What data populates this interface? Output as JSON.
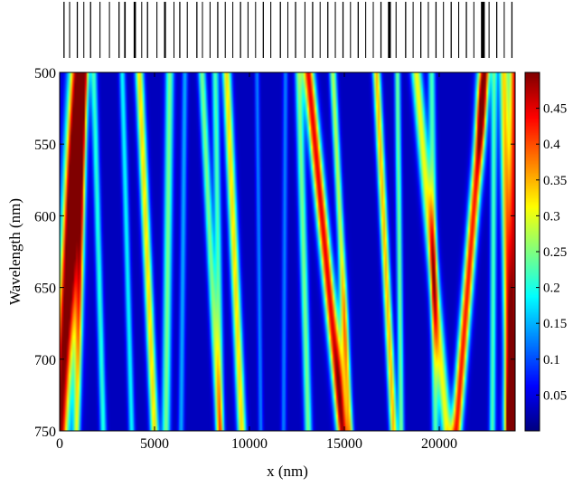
{
  "chart_data": {
    "type": "heatmap",
    "title": "",
    "xlabel": "x (nm)",
    "ylabel": "Wavelength (nm)",
    "xlim": [
      0,
      24000
    ],
    "ylim": [
      500,
      750
    ],
    "y_axis_direction": "top-to-bottom increasing",
    "x_ticks": [
      "0",
      "5000",
      "10000",
      "15000",
      "20000"
    ],
    "x_tick_values": [
      0,
      5000,
      10000,
      15000,
      20000
    ],
    "y_ticks": [
      "500",
      "550",
      "600",
      "650",
      "700",
      "750"
    ],
    "y_tick_values": [
      500,
      550,
      600,
      650,
      700,
      750
    ],
    "colorbar": {
      "range": [
        0,
        0.5
      ],
      "ticks": [
        "0.05",
        "0.1",
        "0.15",
        "0.2",
        "0.25",
        "0.3",
        "0.35",
        "0.4",
        "0.45"
      ],
      "tick_values": [
        0.05,
        0.1,
        0.15,
        0.2,
        0.25,
        0.3,
        0.35,
        0.4,
        0.45
      ],
      "colormap": "jet"
    },
    "background_value": 0.03,
    "bands_description_units": "x in nm, wavelength in nm, peak value in colorbar units",
    "bands": [
      {
        "x500": 1000,
        "x750": 0,
        "width": 450,
        "peak": 0.48
      },
      {
        "x500": 1300,
        "x750": 900,
        "width": 180,
        "peak": 0.25
      },
      {
        "x500": 1800,
        "x750": 2300,
        "width": 170,
        "peak": 0.18
      },
      {
        "x500": 3300,
        "x750": 3800,
        "width": 160,
        "peak": 0.16
      },
      {
        "x500": 4200,
        "x750": 5000,
        "width": 220,
        "peak": 0.3
      },
      {
        "x500": 5800,
        "x750": 5600,
        "width": 220,
        "peak": 0.22
      },
      {
        "x500": 6600,
        "x750": 6400,
        "width": 150,
        "peak": 0.12
      },
      {
        "x500": 7500,
        "x750": 8400,
        "width": 200,
        "peak": 0.22
      },
      {
        "x500": 8200,
        "x750": 8500,
        "width": 180,
        "peak": 0.2
      },
      {
        "x500": 8800,
        "x750": 9600,
        "width": 230,
        "peak": 0.3
      },
      {
        "x500": 10400,
        "x750": 10600,
        "width": 120,
        "peak": 0.1
      },
      {
        "x500": 11900,
        "x750": 11800,
        "width": 130,
        "peak": 0.1
      },
      {
        "x500": 12600,
        "x750": 13100,
        "width": 200,
        "peak": 0.22
      },
      {
        "x500": 13100,
        "x750": 14900,
        "width": 300,
        "peak": 0.42
      },
      {
        "x500": 14400,
        "x750": 15300,
        "width": 180,
        "peak": 0.25
      },
      {
        "x500": 16700,
        "x750": 17600,
        "width": 200,
        "peak": 0.32
      },
      {
        "x500": 17800,
        "x750": 18000,
        "width": 150,
        "peak": 0.22
      },
      {
        "x500": 18800,
        "x750": 20400,
        "width": 280,
        "peak": 0.28
      },
      {
        "x500": 19600,
        "x750": 19800,
        "width": 180,
        "peak": 0.2
      },
      {
        "x500": 22400,
        "x750": 20900,
        "width": 280,
        "peak": 0.4
      },
      {
        "x500": 22900,
        "x750": 22800,
        "width": 160,
        "peak": 0.2
      },
      {
        "x500": 23400,
        "x750": 23700,
        "width": 240,
        "peak": 0.3
      },
      {
        "x500": 24000,
        "x750": 23900,
        "width": 300,
        "peak": 0.42
      }
    ],
    "hotspots": [
      {
        "x": 800,
        "wavelength": 615,
        "peak": 0.49,
        "sx": 450,
        "sw": 90
      },
      {
        "x": 22200,
        "wavelength": 520,
        "peak": 0.45,
        "sx": 300,
        "sw": 40
      },
      {
        "x": 14900,
        "wavelength": 690,
        "peak": 0.4,
        "sx": 300,
        "sw": 50
      },
      {
        "x": 23900,
        "wavelength": 745,
        "peak": 0.48,
        "sx": 500,
        "sw": 35
      }
    ],
    "structure_bars": [
      {
        "x": 200,
        "w": 60
      },
      {
        "x": 500,
        "w": 50
      },
      {
        "x": 900,
        "w": 60
      },
      {
        "x": 1250,
        "w": 40
      },
      {
        "x": 1600,
        "w": 60
      },
      {
        "x": 2100,
        "w": 50
      },
      {
        "x": 2600,
        "w": 40
      },
      {
        "x": 3100,
        "w": 60
      },
      {
        "x": 3400,
        "w": 80
      },
      {
        "x": 3900,
        "w": 120
      },
      {
        "x": 4300,
        "w": 40
      },
      {
        "x": 4600,
        "w": 60
      },
      {
        "x": 5100,
        "w": 50
      },
      {
        "x": 5500,
        "w": 100
      },
      {
        "x": 6000,
        "w": 40
      },
      {
        "x": 6300,
        "w": 60
      },
      {
        "x": 6700,
        "w": 50
      },
      {
        "x": 7200,
        "w": 60
      },
      {
        "x": 7500,
        "w": 40
      },
      {
        "x": 7900,
        "w": 50
      },
      {
        "x": 8300,
        "w": 60
      },
      {
        "x": 8700,
        "w": 50
      },
      {
        "x": 9100,
        "w": 40
      },
      {
        "x": 9500,
        "w": 60
      },
      {
        "x": 9900,
        "w": 50
      },
      {
        "x": 10300,
        "w": 40
      },
      {
        "x": 10700,
        "w": 60
      },
      {
        "x": 11100,
        "w": 50
      },
      {
        "x": 11600,
        "w": 60
      },
      {
        "x": 12000,
        "w": 40
      },
      {
        "x": 12400,
        "w": 60
      },
      {
        "x": 12900,
        "w": 50
      },
      {
        "x": 13300,
        "w": 60
      },
      {
        "x": 13700,
        "w": 40
      },
      {
        "x": 14100,
        "w": 60
      },
      {
        "x": 14500,
        "w": 50
      },
      {
        "x": 14900,
        "w": 60
      },
      {
        "x": 15300,
        "w": 40
      },
      {
        "x": 15700,
        "w": 60
      },
      {
        "x": 16100,
        "w": 50
      },
      {
        "x": 16500,
        "w": 40
      },
      {
        "x": 16900,
        "w": 60
      },
      {
        "x": 17300,
        "w": 150
      },
      {
        "x": 17700,
        "w": 50
      },
      {
        "x": 18200,
        "w": 60
      },
      {
        "x": 18600,
        "w": 40
      },
      {
        "x": 19000,
        "w": 60
      },
      {
        "x": 19400,
        "w": 50
      },
      {
        "x": 19800,
        "w": 60
      },
      {
        "x": 20200,
        "w": 40
      },
      {
        "x": 20600,
        "w": 60
      },
      {
        "x": 21000,
        "w": 50
      },
      {
        "x": 21400,
        "w": 60
      },
      {
        "x": 21800,
        "w": 40
      },
      {
        "x": 22200,
        "w": 200
      },
      {
        "x": 22600,
        "w": 50
      },
      {
        "x": 23000,
        "w": 60
      },
      {
        "x": 23400,
        "w": 40
      },
      {
        "x": 23800,
        "w": 60
      }
    ]
  }
}
